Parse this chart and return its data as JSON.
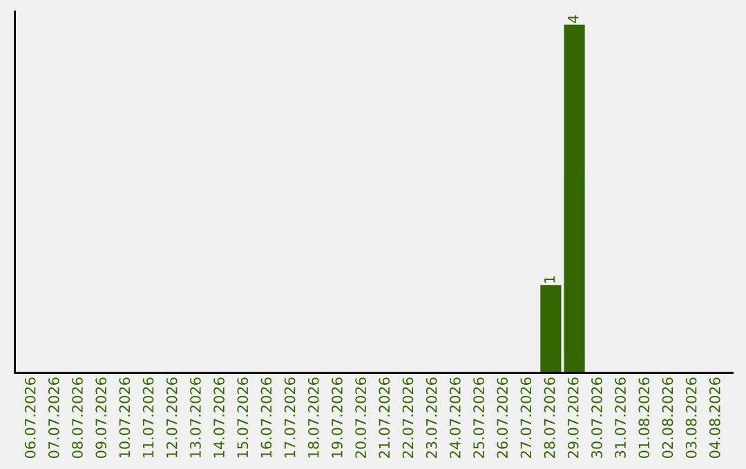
{
  "chart_data": {
    "type": "bar",
    "categories": [
      "06.07.2026",
      "07.07.2026",
      "08.07.2026",
      "09.07.2026",
      "10.07.2026",
      "11.07.2026",
      "12.07.2026",
      "13.07.2026",
      "14.07.2026",
      "15.07.2026",
      "16.07.2026",
      "17.07.2026",
      "18.07.2026",
      "19.07.2026",
      "20.07.2026",
      "21.07.2026",
      "22.07.2026",
      "23.07.2026",
      "24.07.2026",
      "25.07.2026",
      "26.07.2026",
      "27.07.2026",
      "28.07.2026",
      "29.07.2026",
      "30.07.2026",
      "31.07.2026",
      "01.08.2026",
      "02.08.2026",
      "03.08.2026",
      "04.08.2026"
    ],
    "values": [
      null,
      null,
      null,
      null,
      null,
      null,
      null,
      null,
      null,
      null,
      null,
      null,
      null,
      null,
      null,
      null,
      null,
      null,
      null,
      null,
      null,
      null,
      1,
      4,
      null,
      null,
      null,
      null,
      null,
      null
    ],
    "value_labels": [
      null,
      null,
      null,
      null,
      null,
      null,
      null,
      null,
      null,
      null,
      null,
      null,
      null,
      null,
      null,
      null,
      null,
      null,
      null,
      null,
      null,
      null,
      "1",
      "4",
      null,
      null,
      null,
      null,
      null,
      null
    ],
    "color": "#336600",
    "grid": false,
    "legend": false
  }
}
